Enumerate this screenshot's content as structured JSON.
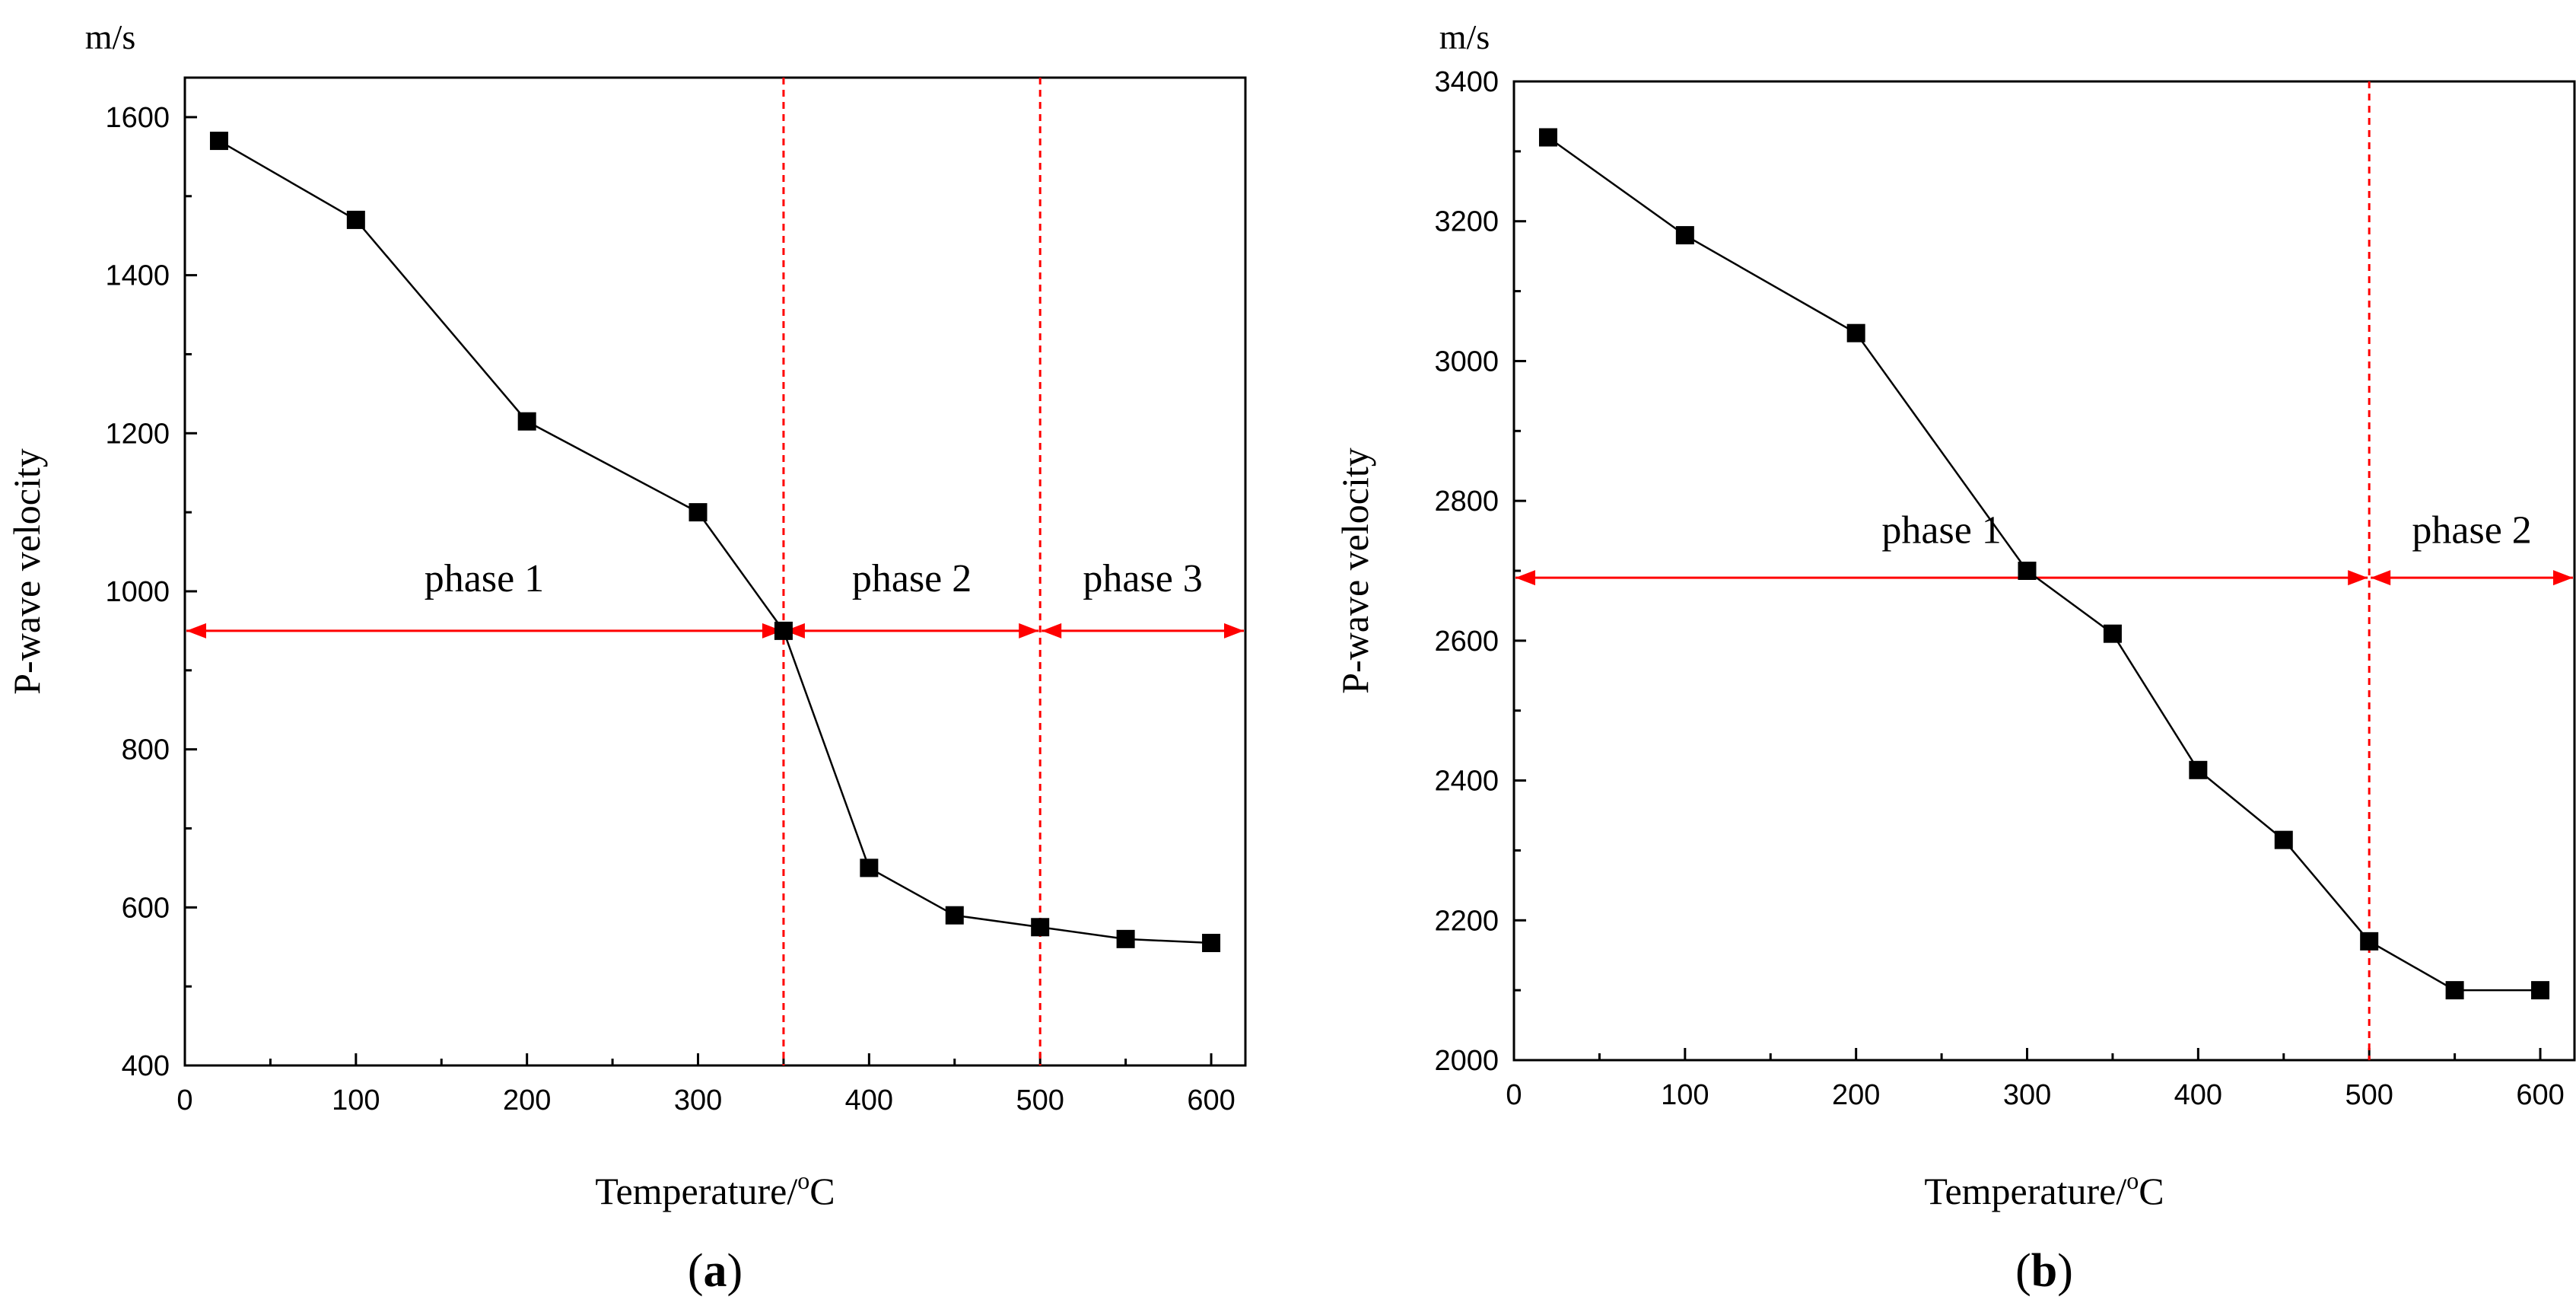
{
  "colors": {
    "series": "#000000",
    "marker": "#000000",
    "phase": "#ff0000",
    "background": "#ffffff"
  },
  "chart_data": [
    {
      "type": "line",
      "panel_label": "a",
      "title": "",
      "xlabel": "Temperature/",
      "xlabel_degree": "o",
      "xlabel_unit": "C",
      "ylabel": "P-wave velocity",
      "yunit": "m/s",
      "xlim": [
        0,
        620
      ],
      "ylim": [
        400,
        1650
      ],
      "xticks": [
        0,
        100,
        200,
        300,
        400,
        500,
        600
      ],
      "yticks": [
        400,
        600,
        800,
        1000,
        1200,
        1400,
        1600
      ],
      "x": [
        20,
        100,
        200,
        300,
        350,
        400,
        450,
        500,
        550,
        600
      ],
      "y": [
        1570,
        1470,
        1215,
        1100,
        950,
        650,
        590,
        575,
        560,
        555
      ],
      "boundaries": [
        350,
        500
      ],
      "phases": [
        {
          "label": "phase 1",
          "from": 0,
          "to": 350,
          "y": 950,
          "label_y": 1000
        },
        {
          "label": "phase 2",
          "from": 350,
          "to": 500,
          "y": 950,
          "label_y": 1000
        },
        {
          "label": "phase 3",
          "from": 500,
          "to": 620,
          "y": 950,
          "label_y": 1000
        }
      ]
    },
    {
      "type": "line",
      "panel_label": "b",
      "title": "",
      "xlabel": "Temperature/",
      "xlabel_degree": "o",
      "xlabel_unit": "C",
      "ylabel": "P-wave velocity",
      "yunit": "m/s",
      "xlim": [
        0,
        620
      ],
      "ylim": [
        2000,
        3400
      ],
      "xticks": [
        0,
        100,
        200,
        300,
        400,
        500,
        600
      ],
      "yticks": [
        2000,
        2200,
        2400,
        2600,
        2800,
        3000,
        3200,
        3400
      ],
      "x": [
        20,
        100,
        200,
        300,
        350,
        400,
        450,
        500,
        550,
        600
      ],
      "y": [
        3320,
        3180,
        3040,
        2700,
        2610,
        2415,
        2315,
        2170,
        2100,
        2100
      ],
      "boundaries": [
        500
      ],
      "phases": [
        {
          "label": "phase 1",
          "from": 0,
          "to": 500,
          "y": 2690,
          "label_y": 2740
        },
        {
          "label": "phase 2",
          "from": 500,
          "to": 620,
          "y": 2690,
          "label_y": 2740
        }
      ]
    }
  ]
}
